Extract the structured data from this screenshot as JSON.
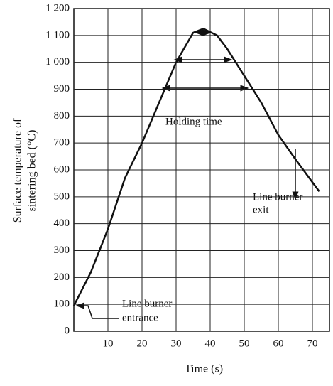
{
  "chart_data": {
    "type": "line",
    "xlabel": "Time (s)",
    "ylabel": [
      "Surface temperature of",
      "sintering bed (°C)"
    ],
    "x": [
      0,
      5,
      10,
      15,
      20,
      25,
      30,
      35,
      38,
      42,
      45,
      50,
      55,
      60,
      65,
      72
    ],
    "series": [
      {
        "name": "Surface temperature",
        "color": "#111111",
        "values": [
          95,
          220,
          380,
          570,
          700,
          850,
          1000,
          1110,
          1125,
          1100,
          1050,
          950,
          850,
          730,
          640,
          520
        ]
      }
    ],
    "xlim": [
      0,
      75
    ],
    "xticks": [
      10,
      20,
      30,
      40,
      50,
      60,
      70
    ],
    "ylim": [
      0,
      1200
    ],
    "yticks": [
      0,
      100,
      200,
      300,
      400,
      500,
      600,
      700,
      800,
      900,
      {
        "value": 1000,
        "label": "1 000"
      },
      {
        "value": 1100,
        "label": "1 100"
      },
      {
        "value": 1200,
        "label": "1 200"
      }
    ],
    "grid": true,
    "annotations": {
      "holding": "Holding time",
      "entrance": [
        "Line burner",
        "entrance"
      ],
      "exit": [
        "Line burner",
        "exit"
      ]
    }
  }
}
